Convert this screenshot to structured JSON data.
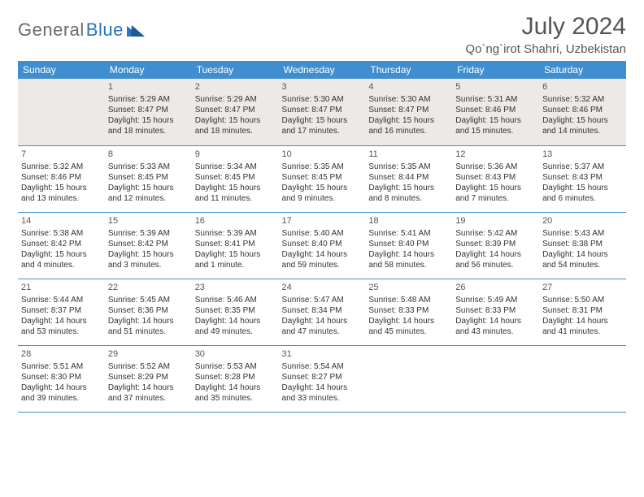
{
  "logo": {
    "text1": "General",
    "text2": "Blue"
  },
  "title": "July 2024",
  "location": "Qo`ng`irot Shahri, Uzbekistan",
  "colors": {
    "header_bg": "#3f8fd0",
    "header_fg": "#ffffff",
    "first_row_bg": "#eceae6",
    "border": "#3f8fd0",
    "title_color": "#555555",
    "logo_gray": "#6b6b6b",
    "logo_blue": "#2a75bb"
  },
  "weekdays": [
    "Sunday",
    "Monday",
    "Tuesday",
    "Wednesday",
    "Thursday",
    "Friday",
    "Saturday"
  ],
  "weeks": [
    [
      null,
      {
        "d": "1",
        "sr": "Sunrise: 5:29 AM",
        "ss": "Sunset: 8:47 PM",
        "dl1": "Daylight: 15 hours",
        "dl2": "and 18 minutes."
      },
      {
        "d": "2",
        "sr": "Sunrise: 5:29 AM",
        "ss": "Sunset: 8:47 PM",
        "dl1": "Daylight: 15 hours",
        "dl2": "and 18 minutes."
      },
      {
        "d": "3",
        "sr": "Sunrise: 5:30 AM",
        "ss": "Sunset: 8:47 PM",
        "dl1": "Daylight: 15 hours",
        "dl2": "and 17 minutes."
      },
      {
        "d": "4",
        "sr": "Sunrise: 5:30 AM",
        "ss": "Sunset: 8:47 PM",
        "dl1": "Daylight: 15 hours",
        "dl2": "and 16 minutes."
      },
      {
        "d": "5",
        "sr": "Sunrise: 5:31 AM",
        "ss": "Sunset: 8:46 PM",
        "dl1": "Daylight: 15 hours",
        "dl2": "and 15 minutes."
      },
      {
        "d": "6",
        "sr": "Sunrise: 5:32 AM",
        "ss": "Sunset: 8:46 PM",
        "dl1": "Daylight: 15 hours",
        "dl2": "and 14 minutes."
      }
    ],
    [
      {
        "d": "7",
        "sr": "Sunrise: 5:32 AM",
        "ss": "Sunset: 8:46 PM",
        "dl1": "Daylight: 15 hours",
        "dl2": "and 13 minutes."
      },
      {
        "d": "8",
        "sr": "Sunrise: 5:33 AM",
        "ss": "Sunset: 8:45 PM",
        "dl1": "Daylight: 15 hours",
        "dl2": "and 12 minutes."
      },
      {
        "d": "9",
        "sr": "Sunrise: 5:34 AM",
        "ss": "Sunset: 8:45 PM",
        "dl1": "Daylight: 15 hours",
        "dl2": "and 11 minutes."
      },
      {
        "d": "10",
        "sr": "Sunrise: 5:35 AM",
        "ss": "Sunset: 8:45 PM",
        "dl1": "Daylight: 15 hours",
        "dl2": "and 9 minutes."
      },
      {
        "d": "11",
        "sr": "Sunrise: 5:35 AM",
        "ss": "Sunset: 8:44 PM",
        "dl1": "Daylight: 15 hours",
        "dl2": "and 8 minutes."
      },
      {
        "d": "12",
        "sr": "Sunrise: 5:36 AM",
        "ss": "Sunset: 8:43 PM",
        "dl1": "Daylight: 15 hours",
        "dl2": "and 7 minutes."
      },
      {
        "d": "13",
        "sr": "Sunrise: 5:37 AM",
        "ss": "Sunset: 8:43 PM",
        "dl1": "Daylight: 15 hours",
        "dl2": "and 6 minutes."
      }
    ],
    [
      {
        "d": "14",
        "sr": "Sunrise: 5:38 AM",
        "ss": "Sunset: 8:42 PM",
        "dl1": "Daylight: 15 hours",
        "dl2": "and 4 minutes."
      },
      {
        "d": "15",
        "sr": "Sunrise: 5:39 AM",
        "ss": "Sunset: 8:42 PM",
        "dl1": "Daylight: 15 hours",
        "dl2": "and 3 minutes."
      },
      {
        "d": "16",
        "sr": "Sunrise: 5:39 AM",
        "ss": "Sunset: 8:41 PM",
        "dl1": "Daylight: 15 hours",
        "dl2": "and 1 minute."
      },
      {
        "d": "17",
        "sr": "Sunrise: 5:40 AM",
        "ss": "Sunset: 8:40 PM",
        "dl1": "Daylight: 14 hours",
        "dl2": "and 59 minutes."
      },
      {
        "d": "18",
        "sr": "Sunrise: 5:41 AM",
        "ss": "Sunset: 8:40 PM",
        "dl1": "Daylight: 14 hours",
        "dl2": "and 58 minutes."
      },
      {
        "d": "19",
        "sr": "Sunrise: 5:42 AM",
        "ss": "Sunset: 8:39 PM",
        "dl1": "Daylight: 14 hours",
        "dl2": "and 56 minutes."
      },
      {
        "d": "20",
        "sr": "Sunrise: 5:43 AM",
        "ss": "Sunset: 8:38 PM",
        "dl1": "Daylight: 14 hours",
        "dl2": "and 54 minutes."
      }
    ],
    [
      {
        "d": "21",
        "sr": "Sunrise: 5:44 AM",
        "ss": "Sunset: 8:37 PM",
        "dl1": "Daylight: 14 hours",
        "dl2": "and 53 minutes."
      },
      {
        "d": "22",
        "sr": "Sunrise: 5:45 AM",
        "ss": "Sunset: 8:36 PM",
        "dl1": "Daylight: 14 hours",
        "dl2": "and 51 minutes."
      },
      {
        "d": "23",
        "sr": "Sunrise: 5:46 AM",
        "ss": "Sunset: 8:35 PM",
        "dl1": "Daylight: 14 hours",
        "dl2": "and 49 minutes."
      },
      {
        "d": "24",
        "sr": "Sunrise: 5:47 AM",
        "ss": "Sunset: 8:34 PM",
        "dl1": "Daylight: 14 hours",
        "dl2": "and 47 minutes."
      },
      {
        "d": "25",
        "sr": "Sunrise: 5:48 AM",
        "ss": "Sunset: 8:33 PM",
        "dl1": "Daylight: 14 hours",
        "dl2": "and 45 minutes."
      },
      {
        "d": "26",
        "sr": "Sunrise: 5:49 AM",
        "ss": "Sunset: 8:33 PM",
        "dl1": "Daylight: 14 hours",
        "dl2": "and 43 minutes."
      },
      {
        "d": "27",
        "sr": "Sunrise: 5:50 AM",
        "ss": "Sunset: 8:31 PM",
        "dl1": "Daylight: 14 hours",
        "dl2": "and 41 minutes."
      }
    ],
    [
      {
        "d": "28",
        "sr": "Sunrise: 5:51 AM",
        "ss": "Sunset: 8:30 PM",
        "dl1": "Daylight: 14 hours",
        "dl2": "and 39 minutes."
      },
      {
        "d": "29",
        "sr": "Sunrise: 5:52 AM",
        "ss": "Sunset: 8:29 PM",
        "dl1": "Daylight: 14 hours",
        "dl2": "and 37 minutes."
      },
      {
        "d": "30",
        "sr": "Sunrise: 5:53 AM",
        "ss": "Sunset: 8:28 PM",
        "dl1": "Daylight: 14 hours",
        "dl2": "and 35 minutes."
      },
      {
        "d": "31",
        "sr": "Sunrise: 5:54 AM",
        "ss": "Sunset: 8:27 PM",
        "dl1": "Daylight: 14 hours",
        "dl2": "and 33 minutes."
      },
      null,
      null,
      null
    ]
  ]
}
